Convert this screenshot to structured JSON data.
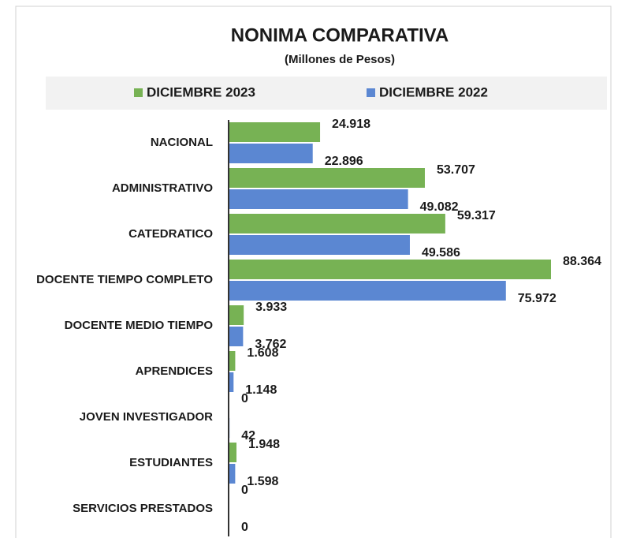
{
  "chart_data": {
    "type": "bar",
    "orientation": "horizontal",
    "title": "NONIMA COMPARATIVA",
    "subtitle": "(Millones de Pesos)",
    "categories": [
      "NACIONAL",
      "ADMINISTRATIVO",
      "CATEDRATICO",
      "DOCENTE TIEMPO COMPLETO",
      "DOCENTE MEDIO TIEMPO",
      "APRENDICES",
      "JOVEN INVESTIGADOR",
      "ESTUDIANTES",
      "SERVICIOS PRESTADOS"
    ],
    "series": [
      {
        "name": "DICIEMBRE 2023",
        "color": "#77b254",
        "values": [
          24918,
          53707,
          59317,
          88364,
          3933,
          1608,
          0,
          1948,
          0
        ],
        "value_labels": [
          "24.918",
          "53.707",
          "59.317",
          "88.364",
          "3.933",
          "1.608",
          "0",
          "1.948",
          "0"
        ]
      },
      {
        "name": "DICIEMBRE 2022",
        "color": "#5b87d2",
        "values": [
          22896,
          49082,
          49586,
          75972,
          3762,
          1148,
          42,
          1598,
          0
        ],
        "value_labels": [
          "22.896",
          "49.082",
          "49.586",
          "75.972",
          "3.762",
          "1.148",
          "42",
          "1.598",
          "0"
        ]
      }
    ],
    "legend": "top"
  }
}
